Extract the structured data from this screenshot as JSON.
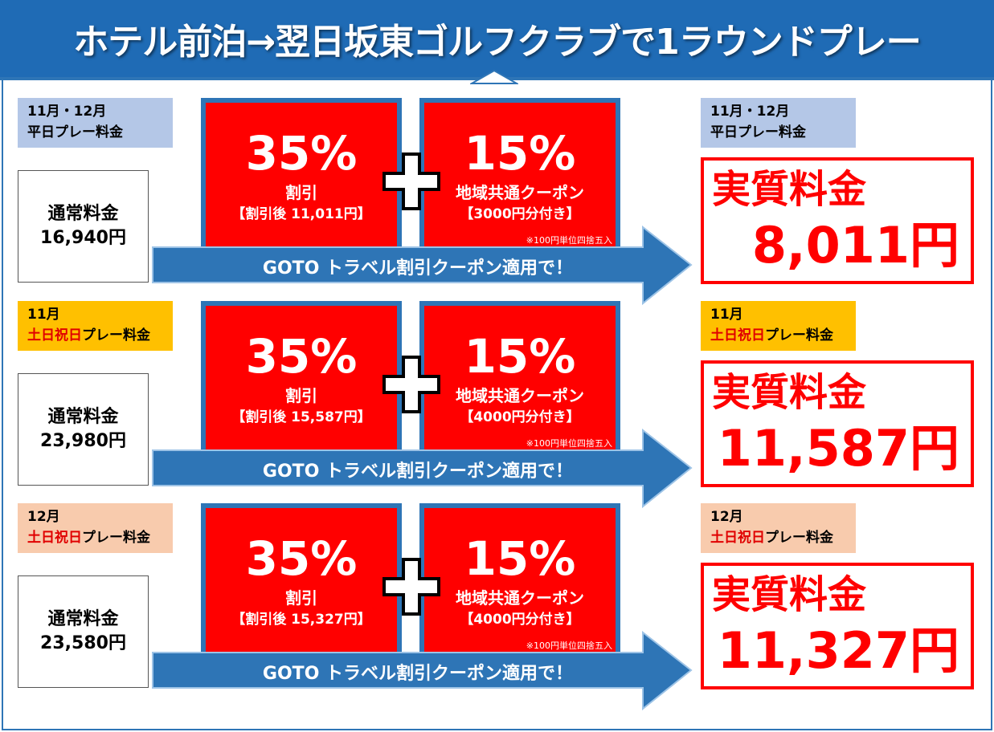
{
  "header": {
    "title": "ホテル前泊→翌日坂東ゴルフクラブで1ラウンドプレー"
  },
  "rows": [
    {
      "label_color": "#b4c7e7",
      "period": "11月・12月",
      "day_spans": [
        {
          "text": "平日プレー料金",
          "color": "#000000"
        }
      ],
      "normal_label": "通常料金",
      "normal_price": "16,940円",
      "discount": {
        "rate": "35%",
        "label": "割引",
        "detail": "【割引後 11,011円】"
      },
      "coupon": {
        "rate": "15%",
        "label": "地域共通クーポン",
        "detail": "【3000円分付き】",
        "note": "※100円単位四捨五入"
      },
      "arrow_text": "GOTO トラベル割引クーポン適用で！",
      "result_label": "実質料金",
      "result_price": "8,011円"
    },
    {
      "label_color": "#ffc000",
      "period": "11月",
      "day_spans": [
        {
          "text": "土日祝日",
          "color": "#e00000"
        },
        {
          "text": "プレー料金",
          "color": "#000000"
        }
      ],
      "normal_label": "通常料金",
      "normal_price": "23,980円",
      "discount": {
        "rate": "35%",
        "label": "割引",
        "detail": "【割引後 15,587円】"
      },
      "coupon": {
        "rate": "15%",
        "label": "地域共通クーポン",
        "detail": "【4000円分付き】",
        "note": "※100円単位四捨五入"
      },
      "arrow_text": "GOTO トラベル割引クーポン適用で！",
      "result_label": "実質料金",
      "result_price": "11,587円"
    },
    {
      "label_color": "#f8cbad",
      "period": "12月",
      "day_spans": [
        {
          "text": "土日祝日",
          "color": "#e00000"
        },
        {
          "text": "プレー料金",
          "color": "#000000"
        }
      ],
      "normal_label": "通常料金",
      "normal_price": "23,580円",
      "discount": {
        "rate": "35%",
        "label": "割引",
        "detail": "【割引後 15,327円】"
      },
      "coupon": {
        "rate": "15%",
        "label": "地域共通クーポン",
        "detail": "【4000円分付き】",
        "note": "※100円単位四捨五入"
      },
      "arrow_text": "GOTO トラベル割引クーポン適用で！",
      "result_label": "実質料金",
      "result_price": "11,327円"
    }
  ]
}
